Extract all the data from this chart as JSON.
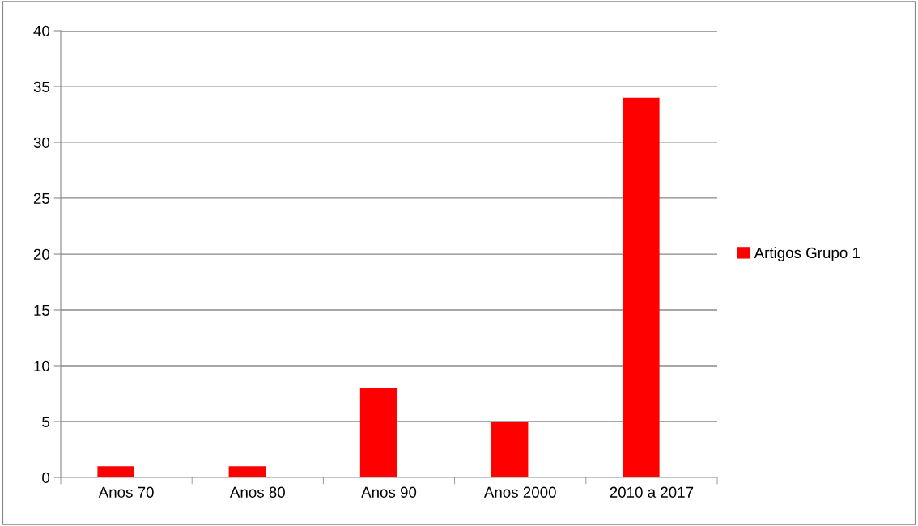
{
  "chart_data": {
    "type": "bar",
    "categories": [
      "Anos 70",
      "Anos 80",
      "Anos 90",
      "Anos 2000",
      "2010 a 2017"
    ],
    "series": [
      {
        "name": "Artigos Grupo 1",
        "color": "#ff0000",
        "values": [
          1,
          1,
          8,
          5,
          34
        ]
      }
    ],
    "ylim": [
      0,
      40
    ],
    "yticks": [
      0,
      5,
      10,
      15,
      20,
      25,
      30,
      35,
      40
    ],
    "grid": "y",
    "legend": "right"
  }
}
